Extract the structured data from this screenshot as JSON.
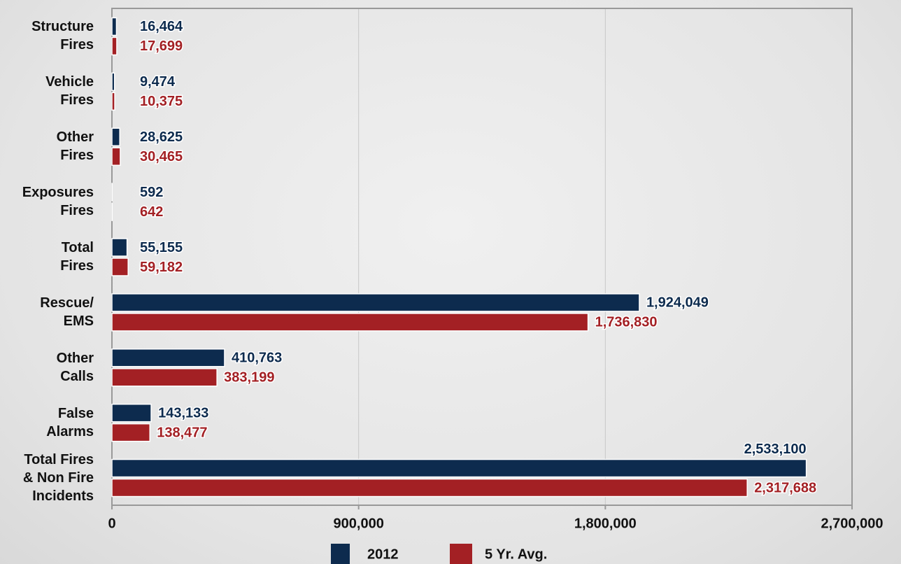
{
  "chart_data": {
    "type": "bar",
    "orientation": "horizontal",
    "categories": [
      "Structure\nFires",
      "Vehicle\nFires",
      "Other\nFires",
      "Exposures\nFires",
      "Total\nFires",
      "Rescue/\nEMS",
      "Other\nCalls",
      "False\nAlarms",
      "Total Fires\n& Non Fire\nIncidents"
    ],
    "series": [
      {
        "name": "2012",
        "color": "#0d2b4e",
        "values": [
          16464,
          9474,
          28625,
          592,
          55155,
          1924049,
          410763,
          143133,
          2533100
        ],
        "value_labels": [
          "16,464",
          "9,474",
          "28,625",
          "592",
          "55,155",
          "1,924,049",
          "410,763",
          "143,133",
          "2,533,100"
        ]
      },
      {
        "name": "5 Yr. Avg.",
        "color": "#a32024",
        "values": [
          17699,
          10375,
          30465,
          642,
          59182,
          1736830,
          383199,
          138477,
          2317688
        ],
        "value_labels": [
          "17,699",
          "10,375",
          "30,465",
          "642",
          "59,182",
          "1,736,830",
          "383,199",
          "138,477",
          "2,317,688"
        ]
      }
    ],
    "xlim": [
      0,
      2700000
    ],
    "xticks": [
      0,
      {
        "value": 900000,
        "label": "900,000"
      },
      {
        "value": 1800000,
        "label": "1,800,000"
      },
      {
        "value": 2700000,
        "label": "2,700,000"
      }
    ],
    "grid": true,
    "legend": "bottom"
  }
}
